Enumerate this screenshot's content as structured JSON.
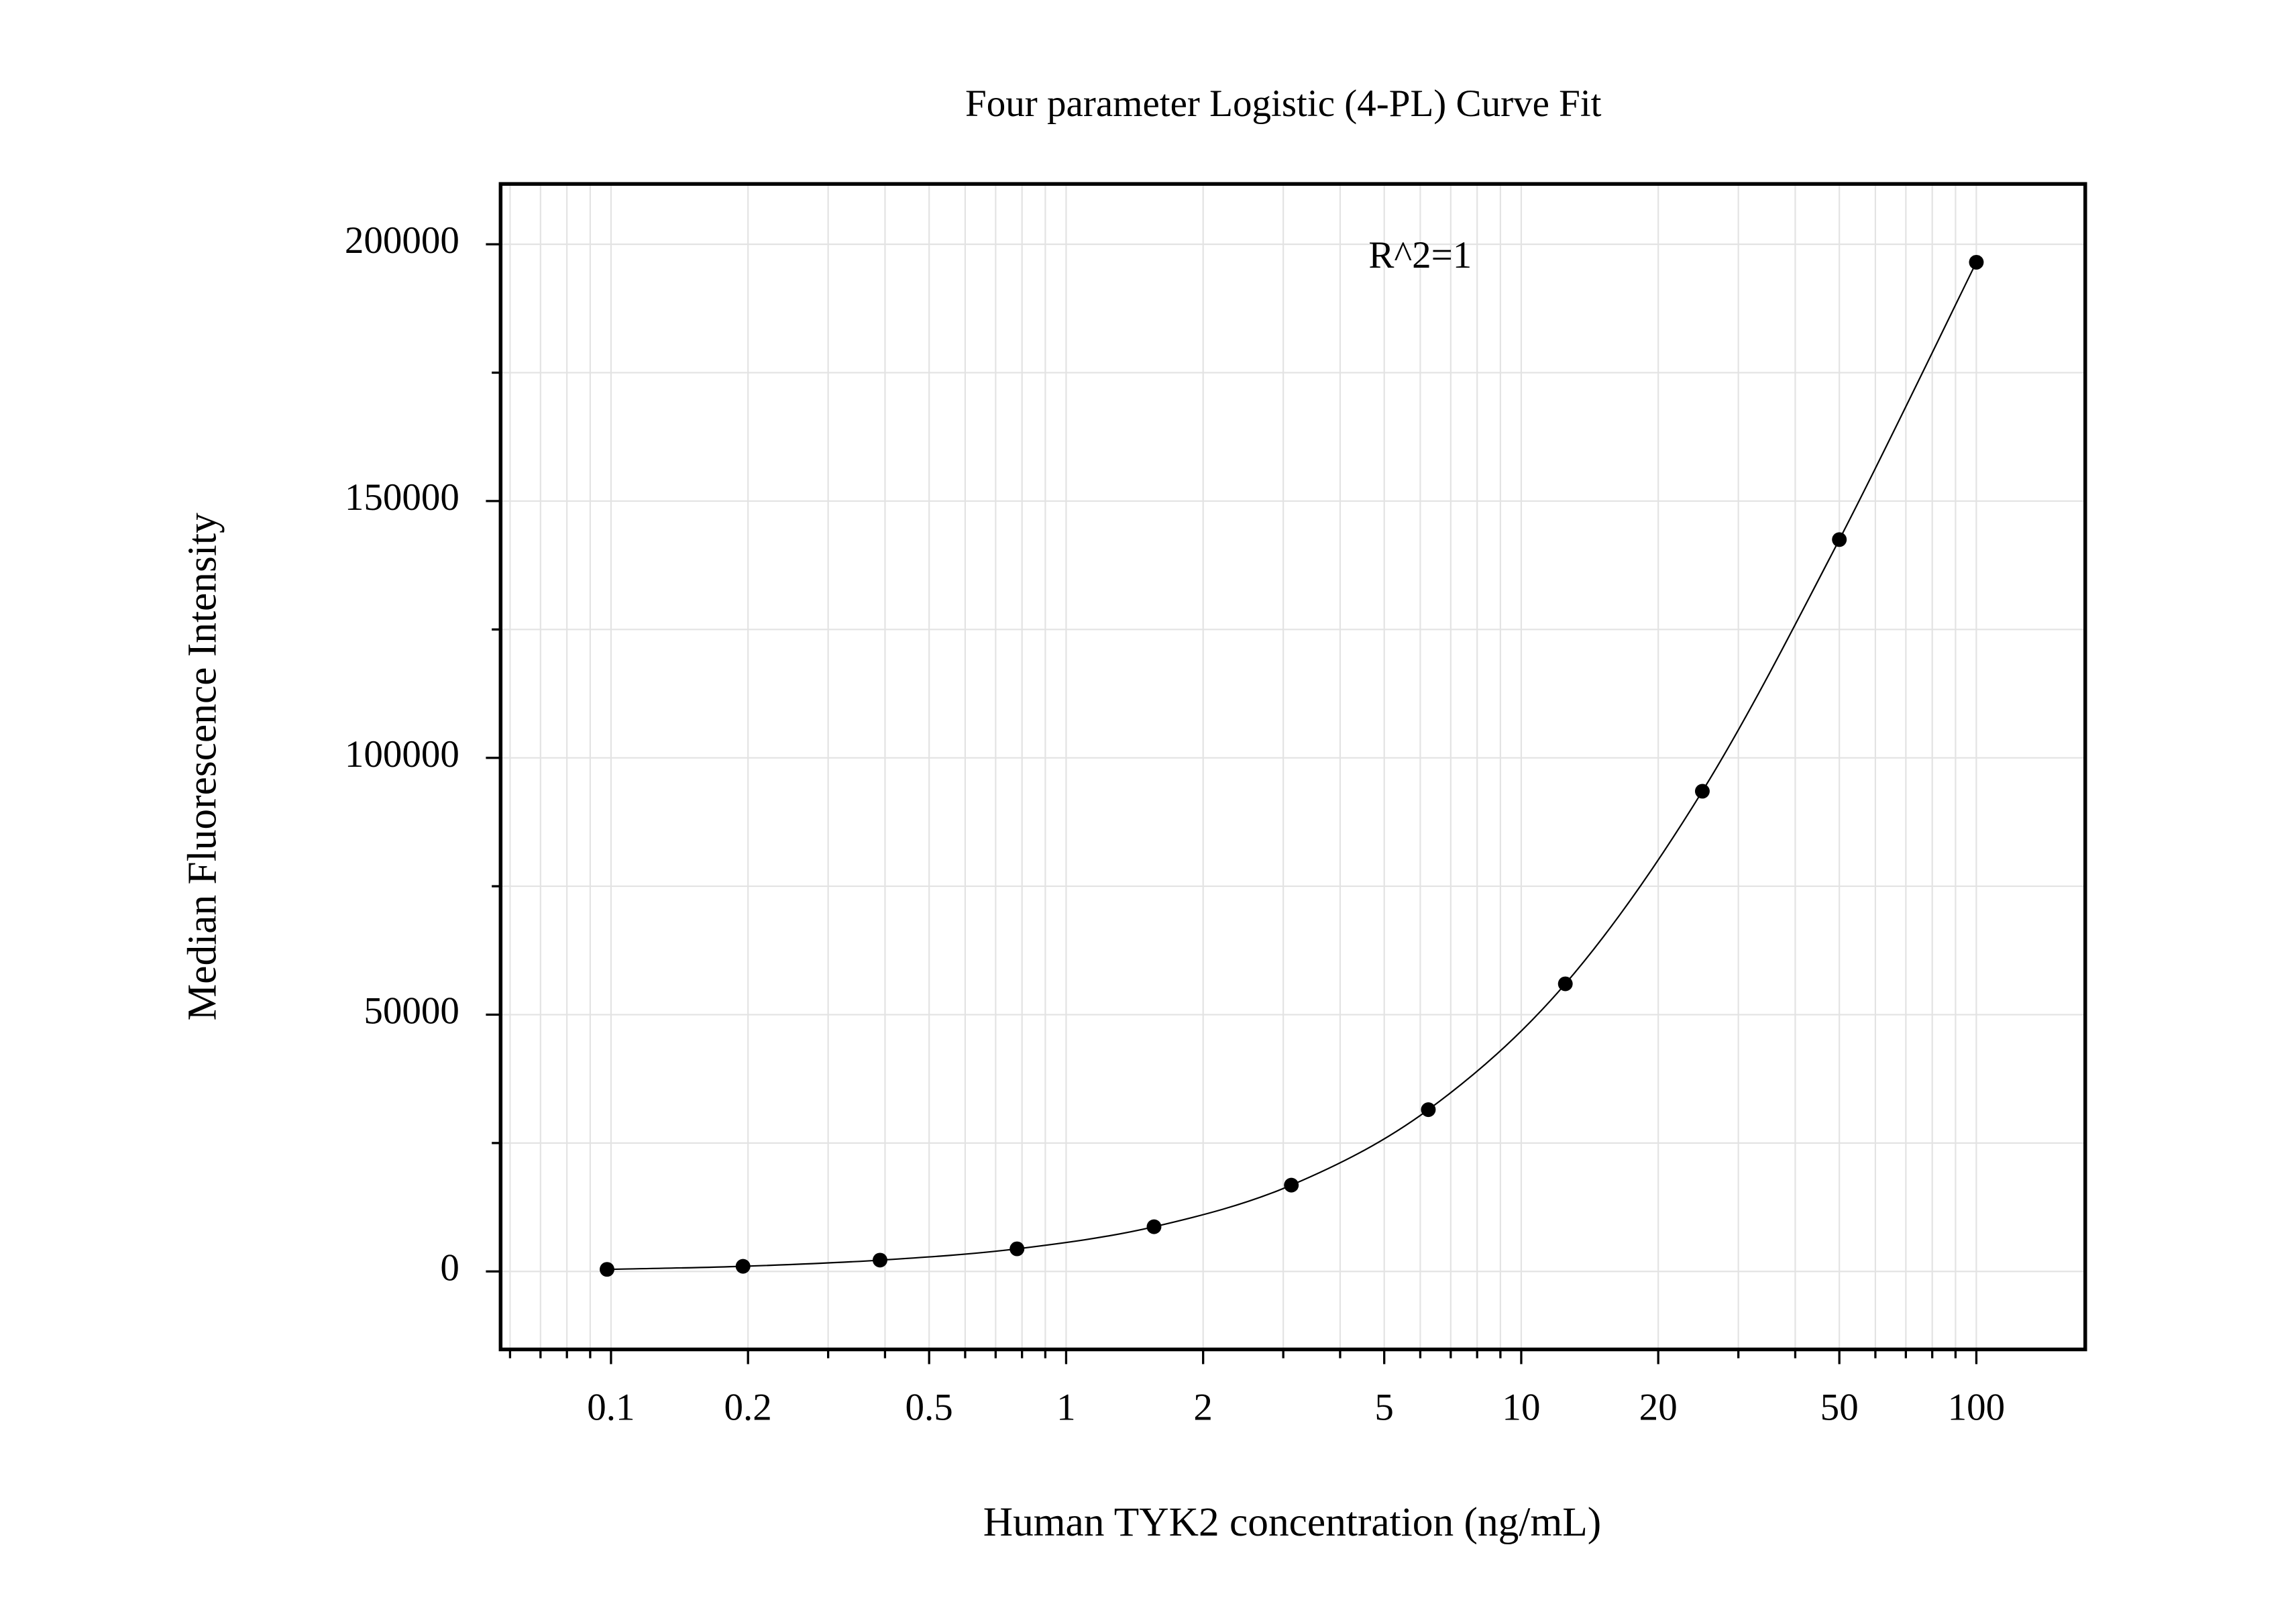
{
  "chart_data": {
    "type": "scatter",
    "title": "Four parameter Logistic (4-PL) Curve Fit",
    "xlabel": "Human TYK2 concentration (ng/mL)",
    "ylabel": "Median Fluorescence Intensity",
    "annotation": "R^2=1",
    "x": [
      0.098,
      0.195,
      0.39,
      0.78,
      1.56,
      3.125,
      6.25,
      12.5,
      25,
      50,
      100
    ],
    "values": [
      400,
      1000,
      2200,
      4400,
      8700,
      16800,
      31500,
      56000,
      93500,
      142500,
      196500
    ],
    "color": "#000000",
    "fit_line": true,
    "xscale": "log",
    "xlim": [
      0.0572,
      173.5
    ],
    "ylim": [
      -15186,
      211748
    ],
    "xticks": [
      0.1,
      0.2,
      0.5,
      1,
      2,
      5,
      10,
      20,
      50,
      100
    ],
    "xminor": [
      0.06,
      0.07,
      0.08,
      0.09,
      0.3,
      0.4,
      0.6,
      0.7,
      0.8,
      0.9,
      3,
      4,
      6,
      7,
      8,
      9,
      30,
      40,
      60,
      70,
      80,
      90
    ],
    "yticks": [
      0,
      50000,
      100000,
      150000,
      200000
    ],
    "yminor": [
      25000,
      75000,
      125000,
      175000
    ],
    "grid": true
  }
}
